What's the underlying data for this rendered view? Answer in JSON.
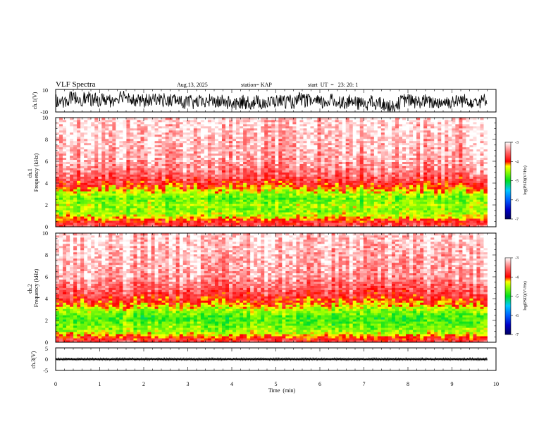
{
  "chart_data": {
    "type": "heatmap",
    "header": {
      "title": "VLF Spectra",
      "date": "Aug.13, 2025",
      "station": "station= KAP",
      "start": "start  UT  =   23: 20: 1"
    },
    "x_axis": {
      "label": "Time  (min)",
      "range": [
        0,
        10
      ],
      "ticks": [
        "0",
        "1",
        "2",
        "3",
        "4",
        "5",
        "6",
        "7",
        "8",
        "9",
        "10"
      ],
      "data_extent_min": 9.8
    },
    "panels": [
      {
        "id": "ch1-waveform",
        "type": "line",
        "ylabel": "ch.1(V)",
        "ylim": [
          -10,
          10
        ],
        "ytick_labels": [
          "10",
          "-10"
        ],
        "trace_amplitude": 10,
        "trace_baseline": 0
      },
      {
        "id": "ch1-spectrogram",
        "type": "heatmap",
        "ylabel": "ch.1\nFrequency  (kHz)",
        "ylim": [
          0,
          10
        ],
        "ytick_labels": [
          "0",
          "2",
          "4",
          "6",
          "8",
          "10"
        ],
        "band_profile": [
          {
            "f": 0.0,
            "v": -3.6
          },
          {
            "f": 0.5,
            "v": -3.9
          },
          {
            "f": 0.9,
            "v": -4.3
          },
          {
            "f": 1.5,
            "v": -4.6
          },
          {
            "f": 2.0,
            "v": -4.5
          },
          {
            "f": 2.6,
            "v": -4.7
          },
          {
            "f": 3.2,
            "v": -4.4
          },
          {
            "f": 3.8,
            "v": -4.0
          },
          {
            "f": 4.6,
            "v": -3.6
          },
          {
            "f": 6.0,
            "v": -3.3
          },
          {
            "f": 10.0,
            "v": -3.1
          }
        ]
      },
      {
        "id": "ch2-spectrogram",
        "type": "heatmap",
        "ylabel": "ch.2\nFrequency  (kHz)",
        "ylim": [
          0,
          10
        ],
        "ytick_labels": [
          "0",
          "2",
          "4",
          "6",
          "8",
          "10"
        ],
        "band_profile": [
          {
            "f": 0.0,
            "v": -3.6
          },
          {
            "f": 0.5,
            "v": -4.0
          },
          {
            "f": 1.0,
            "v": -4.5
          },
          {
            "f": 1.7,
            "v": -4.7
          },
          {
            "f": 2.3,
            "v": -4.8
          },
          {
            "f": 2.9,
            "v": -4.5
          },
          {
            "f": 3.5,
            "v": -4.1
          },
          {
            "f": 4.4,
            "v": -3.7
          },
          {
            "f": 6.0,
            "v": -3.3
          },
          {
            "f": 10.0,
            "v": -3.1
          }
        ]
      },
      {
        "id": "ch3-waveform",
        "type": "line",
        "ylabel": "ch.3(V)",
        "ylim": [
          -5,
          5
        ],
        "ytick_labels": [
          "5",
          "0",
          "-5"
        ],
        "trace_amplitude": 0.5,
        "trace_baseline": 0
      }
    ],
    "colorbar": {
      "label": "log(PSD)(V²/Hz)",
      "range": [
        -7,
        -3
      ],
      "tick_labels": [
        "-3",
        "-4",
        "-5",
        "-6",
        "-7"
      ],
      "stops": [
        {
          "value": -7.0,
          "color": "#000060"
        },
        {
          "value": -6.5,
          "color": "#0000c8"
        },
        {
          "value": -6.0,
          "color": "#0060ff"
        },
        {
          "value": -5.5,
          "color": "#00c8ff"
        },
        {
          "value": -5.0,
          "color": "#00e020"
        },
        {
          "value": -4.5,
          "color": "#a0ff00"
        },
        {
          "value": -4.25,
          "color": "#ffff00"
        },
        {
          "value": -4.0,
          "color": "#ff0000"
        },
        {
          "value": -3.5,
          "color": "#ff7070"
        },
        {
          "value": -3.0,
          "color": "#ffffff"
        }
      ]
    }
  }
}
